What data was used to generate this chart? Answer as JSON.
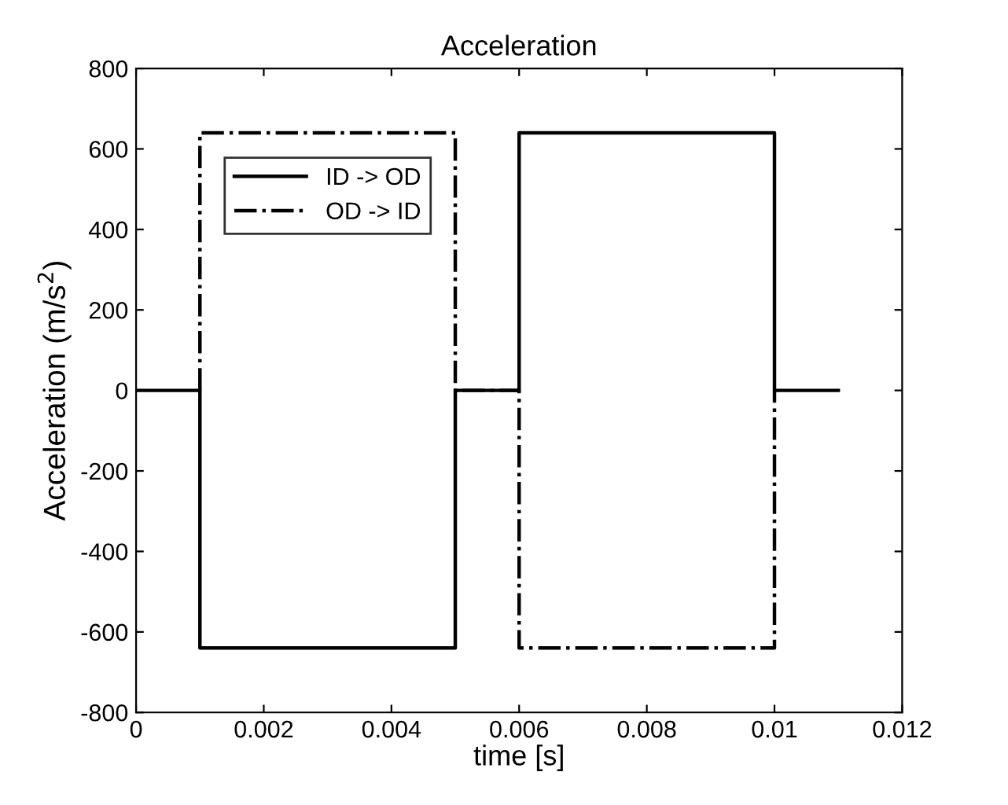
{
  "chart_data": {
    "type": "line",
    "title": "Acceleration",
    "xlabel": "time [s]",
    "ylabel": "Acceleration (m/s$^{2}$)",
    "xlim": [
      0,
      0.012
    ],
    "xticks": [
      0,
      0.002,
      0.004,
      0.006,
      0.008,
      0.01,
      0.012
    ],
    "ylim": [
      -800,
      800
    ],
    "yticks": [
      -800,
      -600,
      -400,
      -200,
      0,
      200,
      400,
      600,
      800
    ],
    "grid": false,
    "legend": "top left",
    "marker": "none",
    "series": [
      {
        "name": "ID -> OD",
        "color": "#000000",
        "line_style": "solid",
        "x": [
          0,
          0.001,
          0.001,
          0.005,
          0.005,
          0.006,
          0.006,
          0.01,
          0.01,
          0.011
        ],
        "values": [
          0,
          0,
          -640,
          -640,
          0,
          0,
          640,
          640,
          0,
          0
        ]
      },
      {
        "name": "OD -> ID",
        "color": "#000000",
        "line_style": "dashdot",
        "x": [
          0.001,
          0.001,
          0.005,
          0.005,
          0.006,
          0.006,
          0.01,
          0.01
        ],
        "values": [
          0,
          640,
          640,
          0,
          0,
          -640,
          -640,
          0
        ]
      }
    ]
  }
}
